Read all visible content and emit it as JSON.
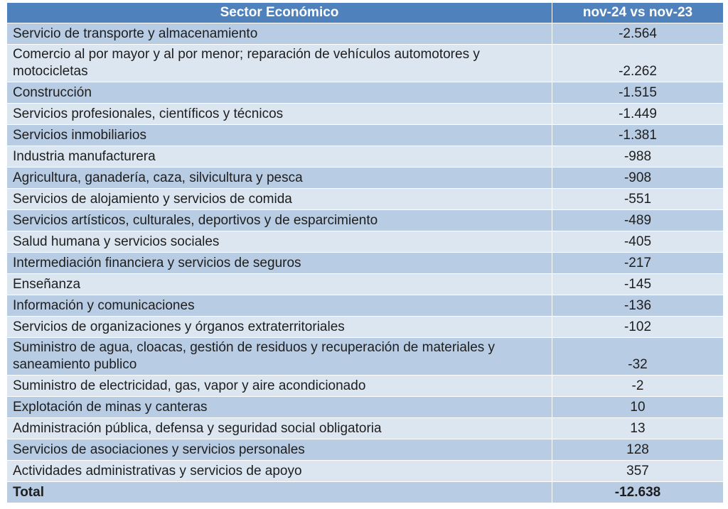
{
  "header": {
    "columns": [
      "Sector Económico",
      "nov-24 vs nov-23"
    ]
  },
  "table": {
    "rows": [
      [
        "Servicio de transporte y almacenamiento",
        "-2.564"
      ],
      [
        "Comercio al por mayor y al por menor; reparación de vehículos automotores y motocicletas",
        "-2.262"
      ],
      [
        "Construcción",
        "-1.515"
      ],
      [
        "Servicios profesionales, científicos y técnicos",
        "-1.449"
      ],
      [
        "Servicios inmobiliarios",
        "-1.381"
      ],
      [
        "Industria manufacturera",
        "-988"
      ],
      [
        "Agricultura, ganadería, caza, silvicultura y pesca",
        "-908"
      ],
      [
        "Servicios de alojamiento y servicios de comida",
        "-551"
      ],
      [
        "Servicios artísticos, culturales, deportivos y de esparcimiento",
        "-489"
      ],
      [
        "Salud humana y servicios sociales",
        "-405"
      ],
      [
        "Intermediación financiera y servicios de seguros",
        "-217"
      ],
      [
        "Enseñanza",
        "-145"
      ],
      [
        "Información y comunicaciones",
        "-136"
      ],
      [
        "Servicios de organizaciones y órganos extraterritoriales",
        "-102"
      ],
      [
        "Suministro de agua, cloacas, gestión de residuos y recuperación de materiales y saneamiento publico",
        "-32"
      ],
      [
        "Suministro de electricidad, gas, vapor y aire acondicionado",
        "-2"
      ],
      [
        "Explotación de minas y canteras",
        "10"
      ],
      [
        "Administración pública, defensa y seguridad social obligatoria",
        "13"
      ],
      [
        "Servicios de asociaciones y servicios personales",
        "128"
      ],
      [
        "Actividades administrativas y servicios de apoyo",
        "357"
      ]
    ],
    "total": [
      "Total",
      "-12.638"
    ]
  }
}
